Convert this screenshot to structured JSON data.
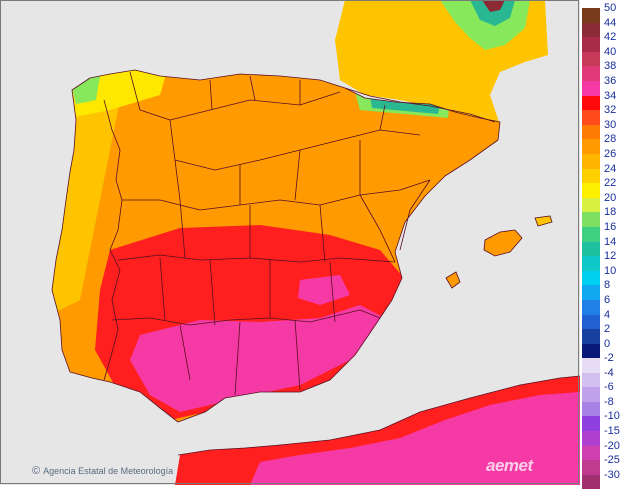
{
  "map": {
    "credit": "Agencia Estatal de Meteorología",
    "credit_icon": "copyright-icon",
    "watermark": "aemet",
    "colors": {
      "sea": "#e6e6e6",
      "border": "#5a0f22",
      "hot": "#ff1f1f",
      "very_hot": "#f53aa6",
      "warm": "#ff9a00",
      "mild": "#ffc400",
      "cool": "#ffe800",
      "cold": "#86e85a",
      "mountain": "#2ab892"
    }
  },
  "legend": {
    "positive": [
      {
        "label": "50",
        "color": "#7a3b1b"
      },
      {
        "label": "44",
        "color": "#8c2a36"
      },
      {
        "label": "42",
        "color": "#a82c48"
      },
      {
        "label": "40",
        "color": "#c73a5a"
      },
      {
        "label": "38",
        "color": "#e13a78"
      },
      {
        "label": "36",
        "color": "#f53aa6"
      },
      {
        "label": "34",
        "color": "#ff0a0a"
      },
      {
        "label": "32",
        "color": "#ff4a1a"
      },
      {
        "label": "30",
        "color": "#ff7a00"
      },
      {
        "label": "28",
        "color": "#ff9a00"
      },
      {
        "label": "26",
        "color": "#ffb400"
      },
      {
        "label": "24",
        "color": "#ffd000"
      },
      {
        "label": "22",
        "color": "#fff000"
      },
      {
        "label": "20",
        "color": "#d8f040"
      },
      {
        "label": "18",
        "color": "#7ee060"
      },
      {
        "label": "16",
        "color": "#3ed080"
      },
      {
        "label": "14",
        "color": "#1ec0a0"
      },
      {
        "label": "12",
        "color": "#10c8c8"
      },
      {
        "label": "10",
        "color": "#00d0f0"
      },
      {
        "label": "8",
        "color": "#10a8f0"
      },
      {
        "label": "6",
        "color": "#2080e8"
      },
      {
        "label": "4",
        "color": "#2060d0"
      },
      {
        "label": "2",
        "color": "#1840a0"
      },
      {
        "label": "0",
        "color": "#0a1878"
      }
    ],
    "negative": [
      {
        "label": "-2",
        "color": "#e6dcf5"
      },
      {
        "label": "-4",
        "color": "#d2bff0"
      },
      {
        "label": "-6",
        "color": "#bfa2ea"
      },
      {
        "label": "-8",
        "color": "#a882e4"
      },
      {
        "label": "-10",
        "color": "#9040e0"
      },
      {
        "label": "-15",
        "color": "#b040d0"
      },
      {
        "label": "-20",
        "color": "#d040b0"
      },
      {
        "label": "-25",
        "color": "#c03a90"
      },
      {
        "label": "-30",
        "color": "#a03070"
      }
    ]
  }
}
